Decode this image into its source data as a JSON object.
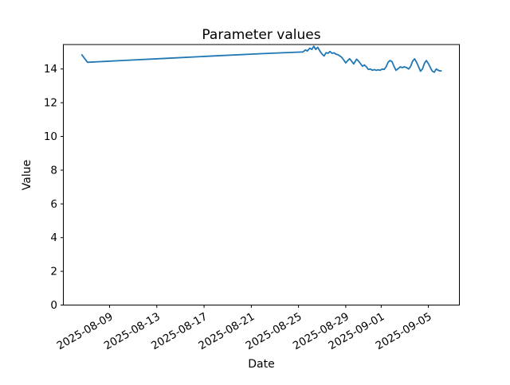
{
  "chart_data": {
    "type": "line",
    "title": "Parameter values",
    "xlabel": "Date",
    "ylabel": "Value",
    "grid": false,
    "legend": false,
    "background_color": "#ffffff",
    "axis_color": "#000000",
    "line_color": "#1f77b4",
    "x_tick_labels": [
      "2025-08-09",
      "2025-08-13",
      "2025-08-17",
      "2025-08-21",
      "2025-08-25",
      "2025-08-29",
      "2025-09-01",
      "2025-09-05"
    ],
    "x_tick_rotation_deg": 30,
    "y_ticks": [
      0,
      2,
      4,
      6,
      8,
      10,
      12,
      14
    ],
    "xlim": [
      "2025-08-05T02:00",
      "2025-09-07T15:00"
    ],
    "ylim": [
      0,
      15.45
    ],
    "series": [
      {
        "points": [
          [
            "2025-08-06T15:00",
            14.87
          ],
          [
            "2025-08-07T03:00",
            14.4
          ],
          [
            "2025-08-10T00:00",
            14.5
          ],
          [
            "2025-08-14T00:00",
            14.64
          ],
          [
            "2025-08-18T00:00",
            14.78
          ],
          [
            "2025-08-22T00:00",
            14.91
          ],
          [
            "2025-08-25T01:00",
            15.0
          ],
          [
            "2025-08-25T09:00",
            15.01
          ],
          [
            "2025-08-25T14:00",
            15.13
          ],
          [
            "2025-08-25T18:00",
            15.07
          ],
          [
            "2025-08-25T23:00",
            15.24
          ],
          [
            "2025-08-26T03:00",
            15.16
          ],
          [
            "2025-08-26T07:00",
            15.35
          ],
          [
            "2025-08-26T11:00",
            15.16
          ],
          [
            "2025-08-26T15:00",
            15.29
          ],
          [
            "2025-08-26T19:00",
            15.08
          ],
          [
            "2025-08-27T00:00",
            14.88
          ],
          [
            "2025-08-27T04:00",
            14.77
          ],
          [
            "2025-08-27T08:00",
            14.97
          ],
          [
            "2025-08-27T12:00",
            14.93
          ],
          [
            "2025-08-27T16:00",
            15.04
          ],
          [
            "2025-08-27T20:00",
            14.93
          ],
          [
            "2025-08-28T00:00",
            14.96
          ],
          [
            "2025-08-28T04:00",
            14.88
          ],
          [
            "2025-08-28T08:00",
            14.85
          ],
          [
            "2025-08-28T12:00",
            14.77
          ],
          [
            "2025-08-28T16:00",
            14.69
          ],
          [
            "2025-08-28T20:00",
            14.53
          ],
          [
            "2025-08-29T00:00",
            14.36
          ],
          [
            "2025-08-29T04:00",
            14.5
          ],
          [
            "2025-08-29T08:00",
            14.61
          ],
          [
            "2025-08-29T12:00",
            14.46
          ],
          [
            "2025-08-29T16:00",
            14.3
          ],
          [
            "2025-08-29T22:00",
            14.58
          ],
          [
            "2025-08-30T02:00",
            14.47
          ],
          [
            "2025-08-30T06:00",
            14.32
          ],
          [
            "2025-08-30T10:00",
            14.16
          ],
          [
            "2025-08-30T14:00",
            14.24
          ],
          [
            "2025-08-30T18:00",
            14.13
          ],
          [
            "2025-08-30T22:00",
            13.97
          ],
          [
            "2025-08-31T02:00",
            14.0
          ],
          [
            "2025-08-31T06:00",
            13.92
          ],
          [
            "2025-08-31T10:00",
            13.97
          ],
          [
            "2025-08-31T14:00",
            13.92
          ],
          [
            "2025-08-31T18:00",
            13.95
          ],
          [
            "2025-08-31T22:00",
            13.92
          ],
          [
            "2025-09-01T02:00",
            14.0
          ],
          [
            "2025-09-01T06:00",
            13.97
          ],
          [
            "2025-09-01T10:00",
            14.13
          ],
          [
            "2025-09-01T14:00",
            14.4
          ],
          [
            "2025-09-01T18:00",
            14.5
          ],
          [
            "2025-09-01T22:00",
            14.44
          ],
          [
            "2025-09-02T02:00",
            14.16
          ],
          [
            "2025-09-02T06:00",
            13.92
          ],
          [
            "2025-09-02T11:00",
            14.03
          ],
          [
            "2025-09-02T15:00",
            14.13
          ],
          [
            "2025-09-02T19:00",
            14.08
          ],
          [
            "2025-09-02T23:00",
            14.13
          ],
          [
            "2025-09-03T04:00",
            14.08
          ],
          [
            "2025-09-03T08:00",
            14.0
          ],
          [
            "2025-09-03T12:00",
            14.16
          ],
          [
            "2025-09-03T16:00",
            14.47
          ],
          [
            "2025-09-03T20:00",
            14.6
          ],
          [
            "2025-09-04T00:00",
            14.4
          ],
          [
            "2025-09-04T04:00",
            14.13
          ],
          [
            "2025-09-04T08:00",
            13.87
          ],
          [
            "2025-09-04T12:00",
            14.0
          ],
          [
            "2025-09-04T16:00",
            14.35
          ],
          [
            "2025-09-04T20:00",
            14.5
          ],
          [
            "2025-09-05T00:00",
            14.32
          ],
          [
            "2025-09-05T04:00",
            14.08
          ],
          [
            "2025-09-05T08:00",
            13.87
          ],
          [
            "2025-09-05T12:00",
            13.81
          ],
          [
            "2025-09-05T16:00",
            14.0
          ],
          [
            "2025-09-05T20:00",
            13.92
          ],
          [
            "2025-09-06T00:00",
            13.88
          ],
          [
            "2025-09-06T03:00",
            13.9
          ]
        ]
      }
    ]
  }
}
